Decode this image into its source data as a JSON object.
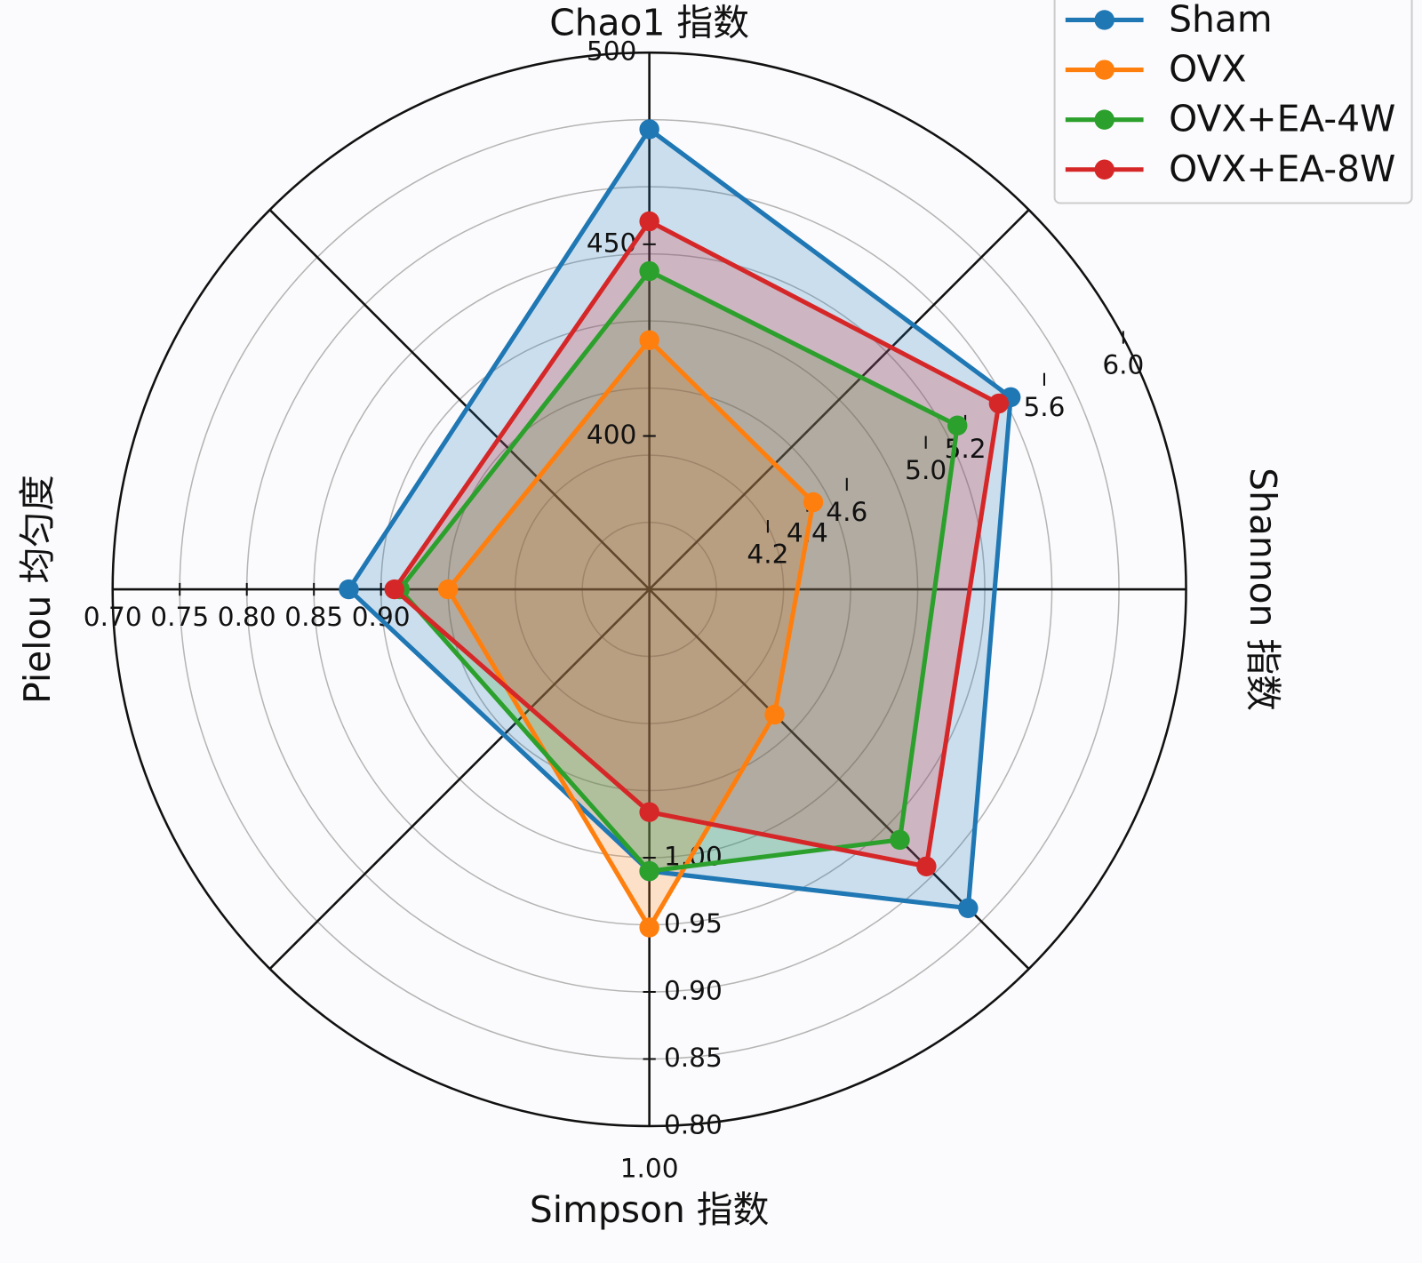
{
  "chart_data": {
    "type": "radar",
    "axes": [
      {
        "label": "Chao1 指数",
        "lim": [
          360,
          500
        ],
        "ticks": [
          400,
          450,
          500
        ]
      },
      {
        "label": "Shannon 指数",
        "lim": [
          3.6,
          6.0
        ],
        "ticks": [
          4.2,
          4.4,
          4.6,
          {
            "value": 5.0,
            "label": "5.0"
          },
          5.2,
          5.6,
          {
            "value": 6.0,
            "label": "6.0"
          }
        ]
      },
      {
        "label": null,
        "lim": [
          0,
          1
        ]
      },
      {
        "label": "Simpson 指数",
        "lim": [
          1.2,
          0.8
        ],
        "ticks": [
          {
            "value": 1.0,
            "label": "1.00"
          },
          0.95,
          {
            "value": 0.9,
            "label": "0.90"
          },
          0.85,
          {
            "value": 0.8,
            "label": "0.80"
          }
        ]
      },
      {
        "label": "Pielou 均匀度",
        "lim": [
          1.1,
          0.7
        ],
        "ticks": [
          {
            "value": 0.7,
            "label": "0.70"
          },
          0.75,
          {
            "value": 0.8,
            "label": "0.80"
          },
          0.85,
          {
            "value": 0.9,
            "label": "0.90"
          }
        ]
      }
    ],
    "annotation": "1.00",
    "series": [
      {
        "name": "Sham",
        "color": "#1f77b4",
        "values": [
          480,
          5.43,
          0.84,
          0.99,
          0.876
        ]
      },
      {
        "name": "OVX",
        "color": "#ff7f0e",
        "values": [
          425,
          4.43,
          0.33,
          0.948,
          0.95
        ]
      },
      {
        "name": "OVX+EA-4W",
        "color": "#2ca02c",
        "values": [
          443,
          5.16,
          0.66,
          0.99,
          0.914
        ]
      },
      {
        "name": "OVX+EA-8W",
        "color": "#d62728",
        "values": [
          456,
          5.37,
          0.73,
          1.034,
          0.91
        ]
      }
    ],
    "legend": "upper right"
  }
}
